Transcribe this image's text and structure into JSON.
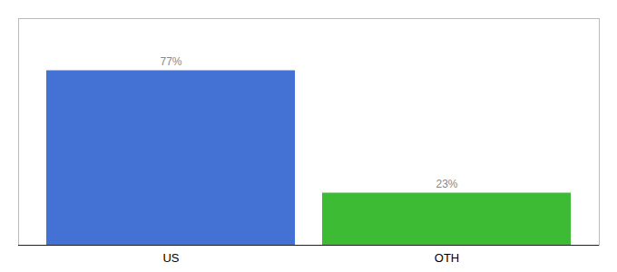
{
  "chart_data": {
    "type": "bar",
    "categories": [
      "US",
      "OTH"
    ],
    "values": [
      77,
      23
    ],
    "colors": [
      "#4472d4",
      "#3dbb35"
    ],
    "data_labels": true,
    "value_labels": [
      "77%",
      "23%"
    ],
    "ylim": [
      0,
      100
    ],
    "tick_labels": "x"
  }
}
